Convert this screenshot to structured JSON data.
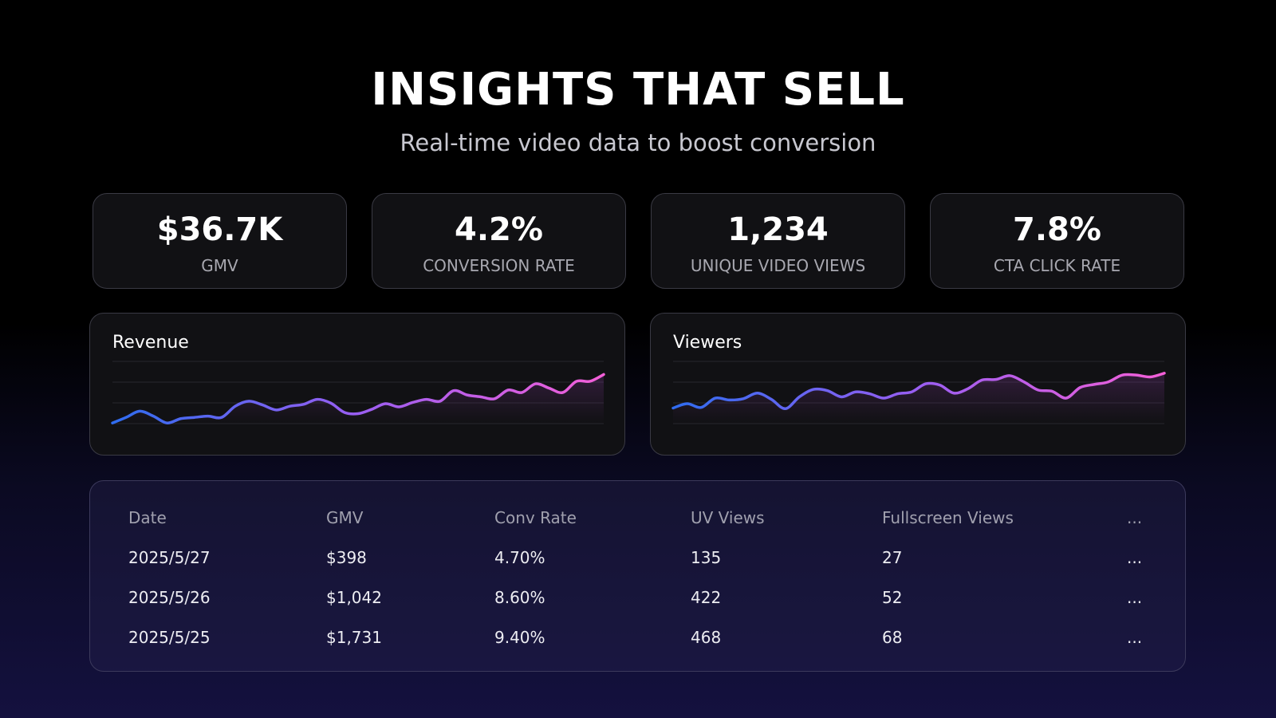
{
  "header": {
    "title": "INSIGHTS THAT SELL",
    "subtitle": "Real-time video data to boost conversion"
  },
  "kpis": [
    {
      "value": "$36.7K",
      "label": "GMV"
    },
    {
      "value": "4.2%",
      "label": "CONVERSION RATE"
    },
    {
      "value": "1,234",
      "label": "UNIQUE VIDEO VIEWS"
    },
    {
      "value": "7.8%",
      "label": "CTA CLICK RATE"
    }
  ],
  "chart_data": [
    {
      "type": "line",
      "title": "Revenue",
      "ylim": [
        0,
        100
      ],
      "gradient": [
        "#2f6cf0",
        "#9a5ef2",
        "#f45fd8"
      ],
      "values": [
        1,
        10,
        20,
        12,
        1,
        8,
        10,
        12,
        10,
        28,
        36,
        30,
        22,
        28,
        31,
        39,
        33,
        18,
        16,
        23,
        32,
        27,
        34,
        39,
        36,
        53,
        46,
        43,
        40,
        54,
        50,
        64,
        57,
        50,
        68,
        68,
        79
      ]
    },
    {
      "type": "line",
      "title": "Viewers",
      "ylim": [
        0,
        100
      ],
      "gradient": [
        "#2f6cf0",
        "#9a5ef2",
        "#f45fd8"
      ],
      "values": [
        25,
        32,
        26,
        41,
        38,
        40,
        49,
        39,
        24,
        43,
        55,
        53,
        43,
        51,
        48,
        41,
        48,
        51,
        64,
        62,
        49,
        56,
        70,
        71,
        77,
        67,
        54,
        52,
        41,
        58,
        63,
        67,
        78,
        78,
        75,
        81
      ]
    }
  ],
  "table": {
    "columns": [
      "Date",
      "GMV",
      "Conv Rate",
      "UV Views",
      "Fullscreen Views",
      "..."
    ],
    "rows": [
      [
        "2025/5/27",
        "$398",
        "4.70%",
        "135",
        "27",
        "..."
      ],
      [
        "2025/5/26",
        "$1,042",
        "8.60%",
        "422",
        "52",
        "..."
      ],
      [
        "2025/5/25",
        "$1,731",
        "9.40%",
        "468",
        "68",
        "..."
      ]
    ]
  }
}
